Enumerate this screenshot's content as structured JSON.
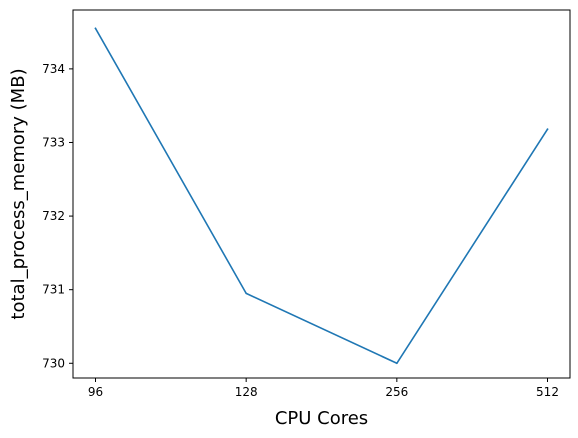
{
  "chart_data": {
    "type": "line",
    "title": "",
    "xlabel": "CPU Cores",
    "ylabel": "total_process_memory (MB)",
    "categories": [
      "96",
      "128",
      "256",
      "512"
    ],
    "series": [
      {
        "values": [
          734.55,
          730.95,
          730.0,
          733.18
        ],
        "color": "#1f77b4"
      }
    ],
    "ylim": [
      729.8,
      734.8
    ],
    "yticks": [
      730,
      731,
      732,
      733,
      734
    ],
    "grid": false,
    "legend": "none"
  }
}
